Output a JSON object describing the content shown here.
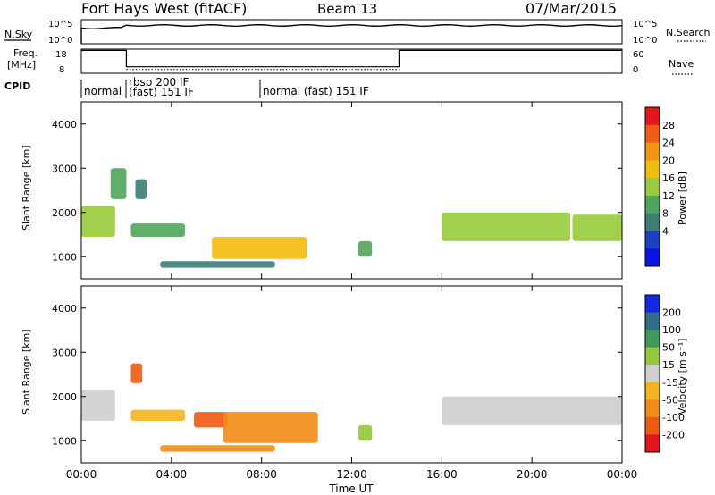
{
  "header": {
    "title": "Fort Hays West (fitACF)",
    "beam": "Beam 13",
    "date": "07/Mar/2015"
  },
  "panels": {
    "nsky_label": "N.Sky",
    "nsearch_label": "N.Search",
    "nsky_ticks": [
      "10^5",
      "10^0"
    ],
    "freq_label_1": "Freq.",
    "freq_label_2": "[MHz]",
    "freq_ticks": [
      "18",
      "8"
    ],
    "nave_label": "Nave",
    "nave_ticks": [
      "60",
      "0"
    ],
    "cpid_label": "CPID",
    "cpid_modes": [
      {
        "label": "normal",
        "start_hour": 0.0
      },
      {
        "label": "rbsp 200 IF",
        "start_hour": 2.0
      },
      {
        "label": "(fast) 151 IF",
        "start_hour": 2.0
      },
      {
        "label": "normal (fast) 151 IF",
        "start_hour": 8.0
      }
    ],
    "nsky_level": 0.76,
    "freq_high_mhz": 17.5,
    "freq_low_mhz": 10.7,
    "freq_switch_hours": [
      2.0,
      14.1
    ]
  },
  "colorbars": {
    "power_label": "Power [dB]",
    "power_ticks": [
      "28",
      "24",
      "20",
      "16",
      "12",
      "8",
      "4"
    ],
    "power_colors": [
      "#e8141c",
      "#f55a14",
      "#f29512",
      "#f2bd0c",
      "#98cc3a",
      "#4ea65a",
      "#3a7e74",
      "#1c40c4",
      "#0a14e8"
    ],
    "velocity_label": "Velocity [m s⁻¹]",
    "velocity_ticks": [
      "200",
      "100",
      "50",
      "15",
      "-15",
      "-50",
      "-100",
      "-200"
    ],
    "velocity_colors": [
      "#1428e8",
      "#2f6f8a",
      "#3f9a5a",
      "#92c83c",
      "#cfcfcf",
      "#f5b41e",
      "#f28c16",
      "#f05a10",
      "#e8141c"
    ]
  },
  "chart_data": {
    "type": "heatmap",
    "xlabel": "Time UT",
    "x_tick_labels": [
      "00:00",
      "04:00",
      "08:00",
      "12:00",
      "16:00",
      "20:00",
      "00:00"
    ],
    "xlim_hours": [
      0,
      24
    ],
    "ylabel": "Slant Range [km]",
    "y_ticks": [
      1000,
      2000,
      3000,
      4000
    ],
    "ylim_km": [
      500,
      4500
    ],
    "power_regions": [
      {
        "t0": 0.0,
        "t1": 1.5,
        "r0": 1450,
        "r1": 2150,
        "db": 14
      },
      {
        "t0": 1.3,
        "t1": 2.0,
        "r0": 2300,
        "r1": 3000,
        "db": 10
      },
      {
        "t0": 2.2,
        "t1": 4.6,
        "r0": 1450,
        "r1": 1750,
        "db": 12
      },
      {
        "t0": 2.4,
        "t1": 2.9,
        "r0": 2300,
        "r1": 2750,
        "db": 8
      },
      {
        "t0": 5.8,
        "t1": 10.0,
        "r0": 950,
        "r1": 1450,
        "db": 20
      },
      {
        "t0": 3.5,
        "t1": 8.6,
        "r0": 750,
        "r1": 900,
        "db": 8
      },
      {
        "t0": 12.3,
        "t1": 12.9,
        "r0": 1000,
        "r1": 1350,
        "db": 10
      },
      {
        "t0": 16.0,
        "t1": 21.7,
        "r0": 1350,
        "r1": 2000,
        "db": 16
      },
      {
        "t0": 21.8,
        "t1": 24.0,
        "r0": 1350,
        "r1": 1950,
        "db": 14
      }
    ],
    "velocity_regions": [
      {
        "t0": 0.0,
        "t1": 1.5,
        "r0": 1450,
        "r1": 2150,
        "v": 0
      },
      {
        "t0": 2.2,
        "t1": 2.7,
        "r0": 2300,
        "r1": 2750,
        "v": -200
      },
      {
        "t0": 2.2,
        "t1": 4.6,
        "r0": 1450,
        "r1": 1700,
        "v": -20
      },
      {
        "t0": 5.0,
        "t1": 6.5,
        "r0": 1300,
        "r1": 1650,
        "v": -200
      },
      {
        "t0": 6.3,
        "t1": 10.5,
        "r0": 950,
        "r1": 1650,
        "v": -60
      },
      {
        "t0": 3.5,
        "t1": 8.6,
        "r0": 750,
        "r1": 900,
        "v": -60
      },
      {
        "t0": 12.3,
        "t1": 12.9,
        "r0": 1000,
        "r1": 1350,
        "v": 40
      },
      {
        "t0": 16.0,
        "t1": 24.0,
        "r0": 1350,
        "r1": 2000,
        "v": 0
      }
    ]
  }
}
